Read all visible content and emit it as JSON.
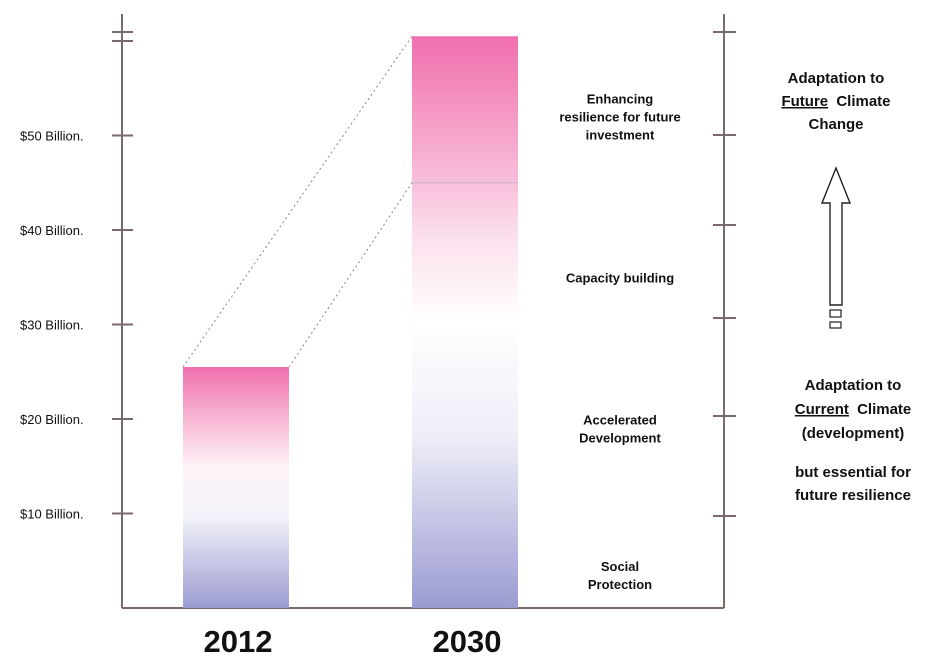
{
  "chart_data": {
    "type": "bar",
    "categories": [
      "2012",
      "2030"
    ],
    "values": [
      25.5,
      60.5
    ],
    "unit": "Billion",
    "ylim": [
      0,
      62
    ],
    "y_ticks": [
      {
        "value": 10,
        "label": "$10 Billion."
      },
      {
        "value": 20,
        "label": "$20 Billion."
      },
      {
        "value": 30,
        "label": "$30 Billion."
      },
      {
        "value": 40,
        "label": "$40 Billion."
      },
      {
        "value": 50,
        "label": "$50 Billion."
      },
      {
        "value": 60,
        "label": ""
      }
    ],
    "segments": [
      {
        "label_lines": [
          "Social",
          "Protection"
        ],
        "anchor_value": 3.5
      },
      {
        "label_lines": [
          "Accelerated",
          "Development"
        ],
        "anchor_value": 19
      },
      {
        "label_lines": [
          "Capacity building"
        ],
        "anchor_value": 35
      },
      {
        "label_lines": [
          "Enhancing",
          "resilience for future",
          "investment"
        ],
        "anchor_value": 52
      }
    ],
    "divider_value": 45,
    "colors": {
      "top": "#f06fae",
      "bottom": "#9b9bd2",
      "axis": "#7a6a6a",
      "text": "#111111"
    },
    "annotations": {
      "future": {
        "prefix": "Adaptation to",
        "underlined": "Future",
        "suffix": "Climate",
        "last": "Change"
      },
      "current": {
        "prefix": "Adaptation to",
        "underlined": "Current",
        "suffix": "Climate",
        "line3": "(development)",
        "line4": "but essential for",
        "line5": "future resilience"
      }
    }
  }
}
